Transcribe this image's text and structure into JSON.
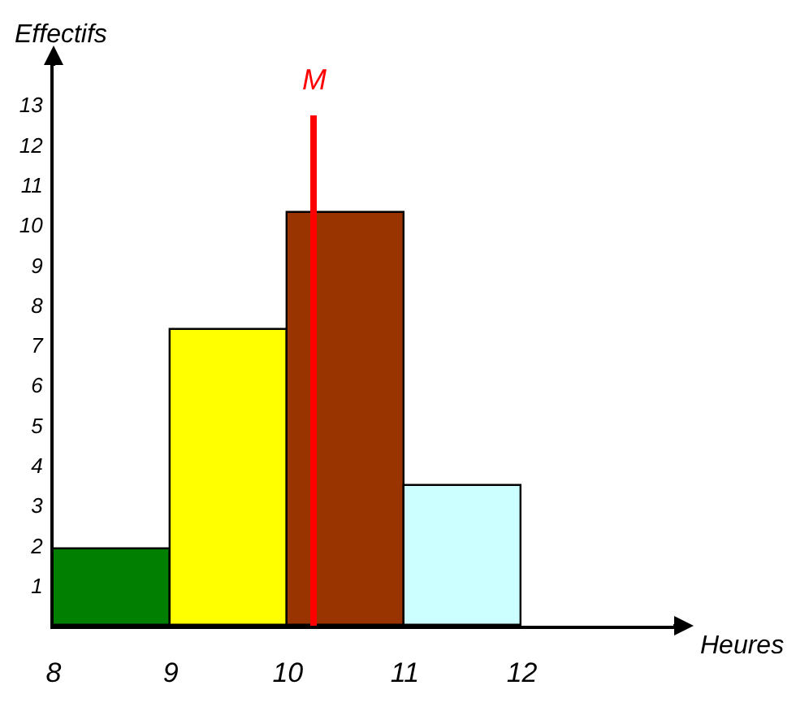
{
  "chart_data": {
    "type": "histogram",
    "xlabel": "Heures",
    "ylabel": "Effectifs",
    "bins": [
      8,
      9,
      10,
      11,
      12
    ],
    "values": [
      1.9,
      7.4,
      10.3,
      3.5
    ],
    "colors": [
      "#007f00",
      "#ffff00",
      "#993300",
      "#ccffff"
    ],
    "xlim": [
      8,
      13.3
    ],
    "xticks": [
      8,
      9,
      10,
      11,
      12
    ],
    "ylim": [
      0,
      14
    ],
    "yticks": [
      1,
      2,
      3,
      4,
      5,
      6,
      7,
      8,
      9,
      10,
      11,
      12,
      13
    ],
    "ref_lines": [
      {
        "axis": "x",
        "value": 10.22,
        "label": "M",
        "color": "#ff0000"
      }
    ],
    "grid": false
  }
}
